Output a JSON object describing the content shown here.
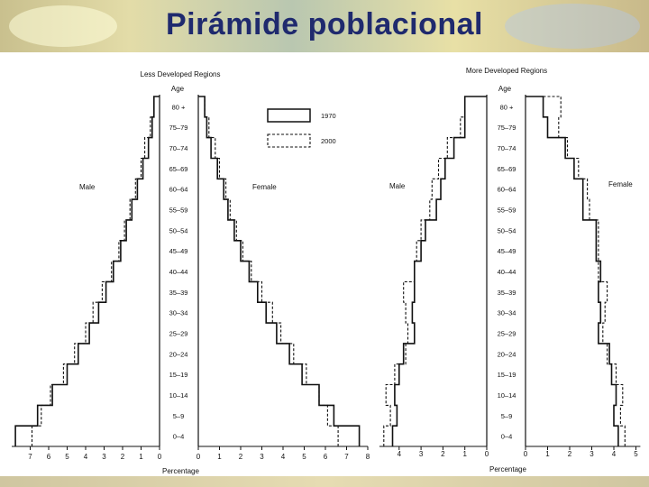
{
  "page": {
    "title": "Pirámide poblacional"
  },
  "chart_data": [
    {
      "type": "bar",
      "orientation": "horizontal-pyramid",
      "title": "Less Developed Regions",
      "age_axis_label": "Age",
      "xlabel": "Percentage",
      "left_label": "Male",
      "right_label": "Female",
      "categories": [
        "0–4",
        "5–9",
        "10–14",
        "15–19",
        "20–24",
        "25–29",
        "30–34",
        "35–39",
        "40–44",
        "45–49",
        "50–54",
        "55–59",
        "60–64",
        "65–69",
        "70–74",
        "75–79",
        "80 +"
      ],
      "series": [
        {
          "name": "1970",
          "male": [
            7.8,
            6.6,
            5.8,
            5.0,
            4.4,
            3.8,
            3.3,
            2.9,
            2.5,
            2.1,
            1.8,
            1.5,
            1.2,
            0.9,
            0.6,
            0.4,
            0.3
          ],
          "female": [
            7.6,
            6.4,
            5.7,
            4.9,
            4.3,
            3.7,
            3.2,
            2.8,
            2.4,
            2.0,
            1.7,
            1.4,
            1.2,
            0.9,
            0.6,
            0.4,
            0.3
          ]
        },
        {
          "name": "2000",
          "male": [
            6.9,
            6.4,
            5.9,
            5.2,
            4.6,
            4.0,
            3.6,
            3.1,
            2.6,
            2.2,
            1.9,
            1.6,
            1.3,
            1.0,
            0.8,
            0.5,
            0.3
          ],
          "female": [
            6.6,
            6.1,
            5.7,
            5.1,
            4.5,
            3.9,
            3.5,
            3.0,
            2.5,
            2.1,
            1.8,
            1.5,
            1.3,
            1.0,
            0.8,
            0.5,
            0.3
          ]
        }
      ],
      "left_ticks": [
        "7",
        "6",
        "5",
        "4",
        "3",
        "2",
        "1",
        "0"
      ],
      "right_ticks": [
        "0",
        "1",
        "2",
        "3",
        "4",
        "5",
        "6",
        "7",
        "8"
      ],
      "xlim_male": [
        0,
        8
      ],
      "xlim_female": [
        0,
        8
      ],
      "legend": {
        "position": "top-center",
        "entries": [
          "1970",
          "2000"
        ]
      }
    },
    {
      "type": "bar",
      "orientation": "horizontal-pyramid",
      "title": "More Developed Regions",
      "age_axis_label": "Age",
      "xlabel": "Percentage",
      "left_label": "Male",
      "right_label": "Female",
      "categories": [
        "0–4",
        "5–9",
        "10–14",
        "15–19",
        "20–24",
        "25–29",
        "30–34",
        "35–39",
        "40–44",
        "45–49",
        "50–54",
        "55–59",
        "60–64",
        "65–69",
        "70–74",
        "75–79",
        "80 +"
      ],
      "series": [
        {
          "name": "1970",
          "male": [
            4.3,
            4.1,
            4.2,
            4.0,
            3.8,
            3.3,
            3.4,
            3.3,
            3.3,
            3.0,
            2.8,
            2.3,
            2.1,
            1.9,
            1.5,
            1.0,
            1.0
          ],
          "female": [
            4.2,
            4.0,
            4.1,
            3.9,
            3.8,
            3.3,
            3.4,
            3.3,
            3.4,
            3.2,
            3.2,
            2.6,
            2.6,
            2.2,
            1.8,
            1.0,
            0.8
          ]
        },
        {
          "name": "2000",
          "male": [
            4.7,
            4.4,
            4.6,
            4.2,
            3.7,
            3.6,
            3.7,
            3.8,
            3.3,
            3.2,
            3.0,
            2.6,
            2.5,
            2.2,
            1.8,
            1.2,
            1.0
          ],
          "female": [
            4.5,
            4.3,
            4.4,
            4.1,
            3.7,
            3.5,
            3.6,
            3.7,
            3.3,
            3.3,
            3.3,
            2.9,
            2.8,
            2.4,
            1.9,
            1.5,
            1.6
          ]
        }
      ],
      "left_ticks": [
        "4",
        "3",
        "2",
        "1",
        "0"
      ],
      "right_ticks": [
        "0",
        "1",
        "2",
        "3",
        "4",
        "5"
      ],
      "xlim_male": [
        0,
        4.9
      ],
      "xlim_female": [
        0,
        5.2
      ],
      "legend": {
        "position": "none",
        "entries": []
      }
    }
  ]
}
